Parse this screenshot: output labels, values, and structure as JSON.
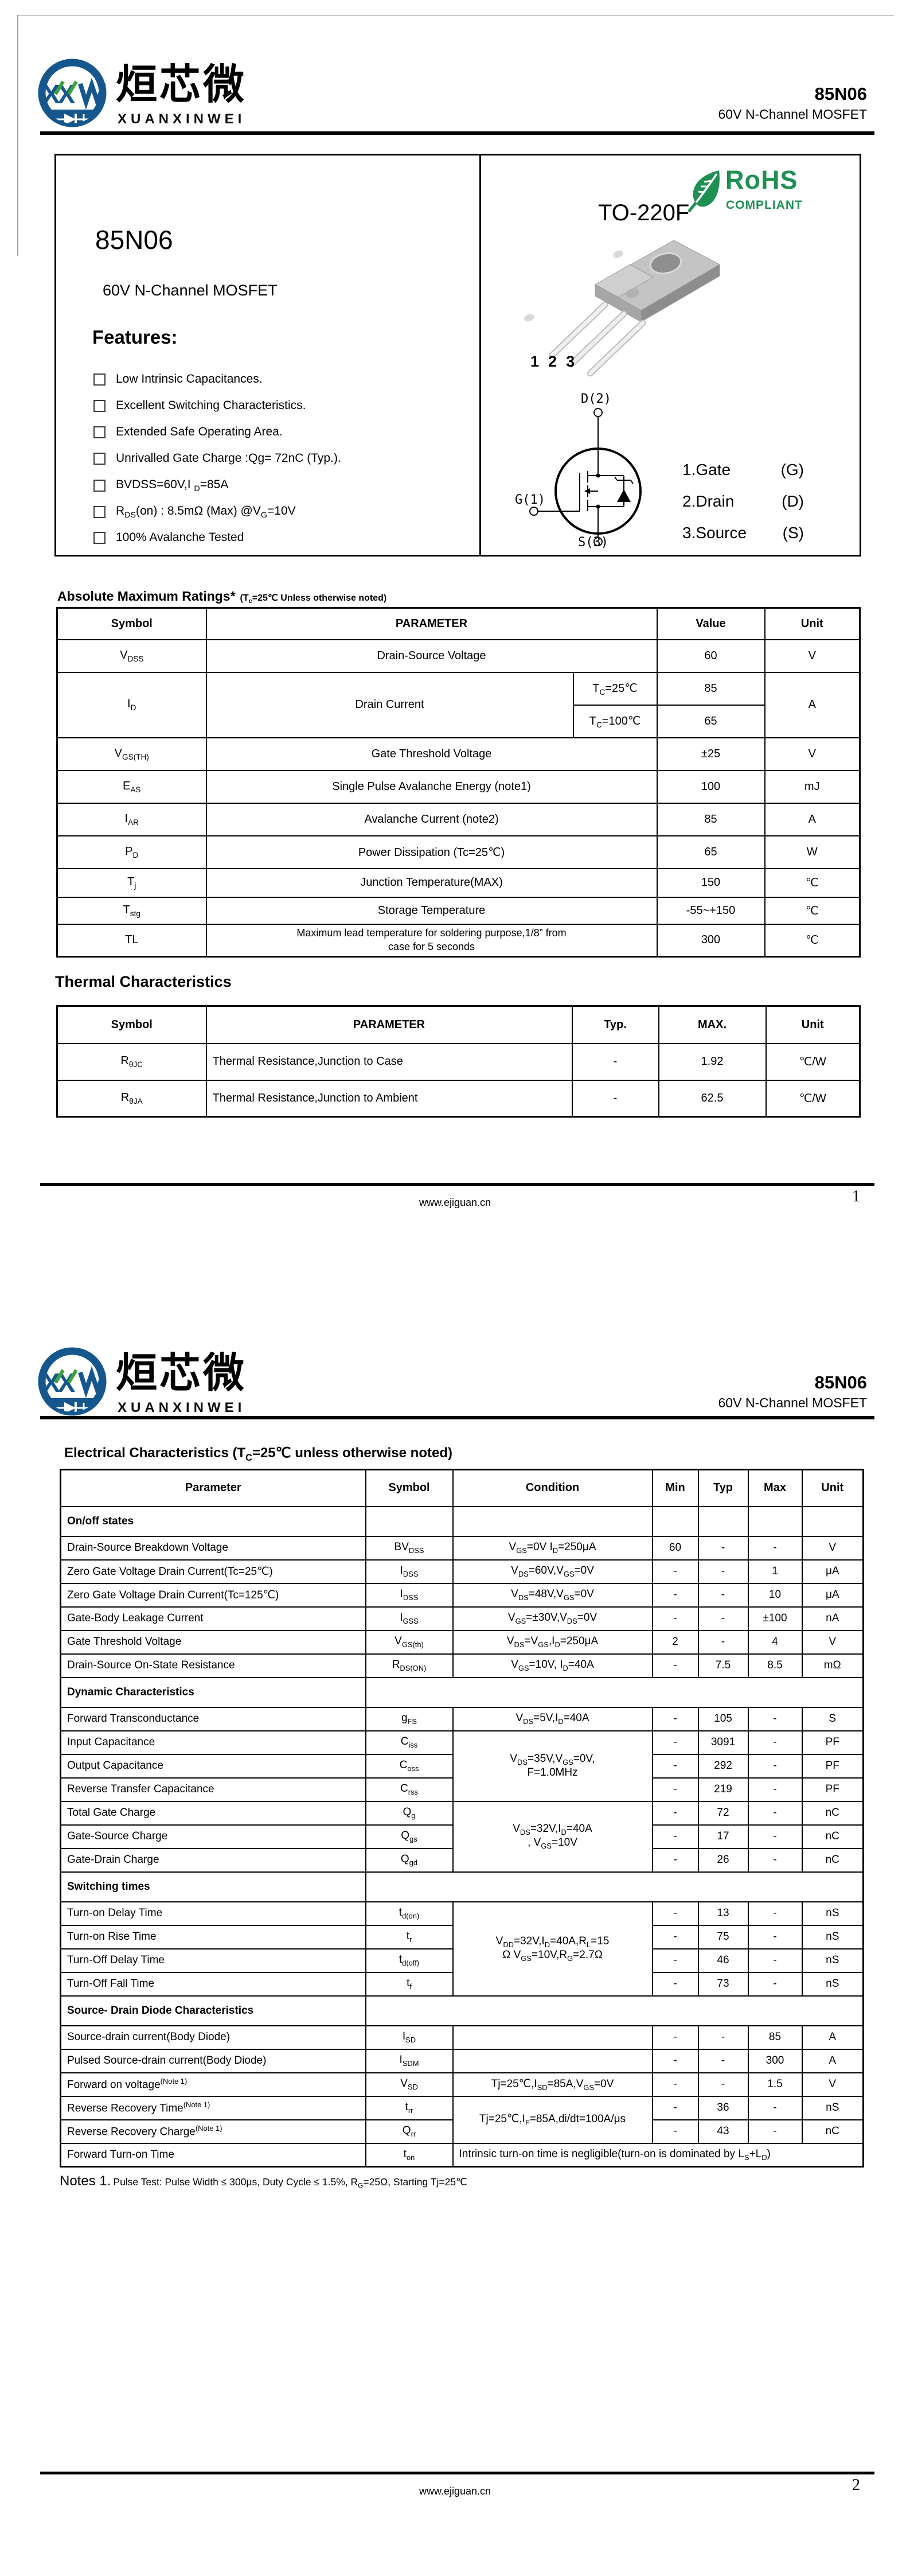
{
  "doc": {
    "part": "85N06",
    "subtitle": "60V N-Channel MOSFET"
  },
  "brand": {
    "cn": "烜芯微",
    "en": "XUANXINWEI"
  },
  "page1": {
    "product": {
      "title": "85N06",
      "subtitle": "60V N-Channel MOSFET",
      "features_title": "Features:",
      "features": [
        "Low Intrinsic Capacitances.",
        "Excellent Switching Characteristics.",
        "Extended Safe Operating Area.",
        "Unrivalled Gate Charge :Qg= 72nC (Typ.).",
        "BVDSS=60V,I _{D}=85A",
        "R_{DS}(on) : 8.5mΩ (Max) @V_{G}=10V",
        "100% Avalanche Tested"
      ]
    },
    "package": {
      "name": "TO-220F",
      "rohs": "RoHS",
      "rohs_sub": "COMPLIANT",
      "pins": [
        "1",
        "2",
        "3"
      ],
      "sym_top": "D(2)",
      "sym_left": "G(1)",
      "sym_bottom": "S(3)",
      "legend": [
        {
          "name": "1.Gate",
          "pin": "(G)"
        },
        {
          "name": "2.Drain",
          "pin": "(D)"
        },
        {
          "name": "3.Source",
          "pin": "(S)"
        }
      ]
    },
    "abs": {
      "title": "Absolute Maximum Ratings*",
      "note": "(T_{c}=25℃ Unless otherwise noted)",
      "headers": [
        "Symbol",
        "PARAMETER",
        "Value",
        "Unit"
      ],
      "r0": {
        "s": "V_{DSS}",
        "p": "Drain-Source Voltage",
        "v": "60",
        "u": "V"
      },
      "id": {
        "s": "I_{D}",
        "p": "Drain Current",
        "c1": "T_{C}=25℃",
        "v1": "85",
        "c2": "T_{C}=100℃",
        "v2": "65",
        "u": "A"
      },
      "rows": [
        {
          "s": "V_{GS(TH)}",
          "p": "Gate Threshold Voltage",
          "v": "±25",
          "u": "V"
        },
        {
          "s": "E_{AS}",
          "p": "Single Pulse Avalanche Energy (note1)",
          "v": "100",
          "u": "mJ"
        },
        {
          "s": "I_{AR}",
          "p": "Avalanche Current (note2)",
          "v": "85",
          "u": "A"
        },
        {
          "s": "P_{D}",
          "p": "Power Dissipation (Tc=25℃)",
          "v": "65",
          "u": "W"
        },
        {
          "s": "T_{j}",
          "p": "Junction Temperature(MAX)",
          "v": "150",
          "u": "℃"
        },
        {
          "s": "T_{stg}",
          "p": "Storage Temperature",
          "v": "-55~+150",
          "u": "℃"
        },
        {
          "s": "TL",
          "p": "Maximum lead temperature for soldering purpose,1/8” from\ncase for 5 seconds",
          "v": "300",
          "u": "℃"
        }
      ]
    },
    "thermal": {
      "title": "Thermal Characteristics",
      "headers": [
        "Symbol",
        "PARAMETER",
        "Typ.",
        "MAX.",
        "Unit"
      ],
      "rows": [
        {
          "s": "R_{θJC}",
          "p": "Thermal Resistance,Junction to Case",
          "t": "-",
          "m": "1.92",
          "u": "℃/W"
        },
        {
          "s": "R_{θJA}",
          "p": "Thermal Resistance,Junction to Ambient",
          "t": "-",
          "m": "62.5",
          "u": "℃/W"
        }
      ]
    },
    "footer": {
      "site": "www.ejiguan.cn",
      "page": "1"
    }
  },
  "page2": {
    "ec": {
      "title": "Electrical Characteristics (T_{C}=25℃ unless otherwise noted)",
      "headers": [
        "Parameter",
        "Symbol",
        "Condition",
        "Min",
        "Typ",
        "Max",
        "Unit"
      ],
      "sections": {
        "onoff": "On/off states",
        "dynamic": "Dynamic Characteristics",
        "switching": "Switching times",
        "diode": "Source- Drain Diode Characteristics"
      },
      "rows": [
        {
          "p": "Drain-Source Breakdown Voltage",
          "s": "BV_{DSS}",
          "c": "V_{GS}=0V I_{D}=250μA",
          "min": "60",
          "typ": "-",
          "max": "-",
          "u": "V"
        },
        {
          "p": "Zero Gate Voltage Drain Current(Tc=25℃)",
          "s": "I_{DSS}",
          "c": "V_{DS}=60V,V_{GS}=0V",
          "min": "-",
          "typ": "-",
          "max": "1",
          "u": "μA"
        },
        {
          "p": "Zero Gate Voltage Drain Current(Tc=125℃)",
          "s": "I_{DSS}",
          "c": "V_{DS}=48V,V_{GS}=0V",
          "min": "-",
          "typ": "-",
          "max": "10",
          "u": "μA"
        },
        {
          "p": "Gate-Body Leakage Current",
          "s": "I_{GSS}",
          "c": "V_{GS}=±30V,V_{DS}=0V",
          "min": "-",
          "typ": "-",
          "max": "±100",
          "u": "nA"
        },
        {
          "p": "Gate Threshold Voltage",
          "s": "V_{GS(th)}",
          "c": "V_{DS}=V_{GS},I_{D}=250μA",
          "min": "2",
          "typ": "-",
          "max": "4",
          "u": "V"
        },
        {
          "p": "Drain-Source On-State Resistance",
          "s": "R_{DS(ON)}",
          "c": "V_{GS}=10V, I_{D}=40A",
          "min": "-",
          "typ": "7.5",
          "max": "8.5",
          "u": "mΩ"
        },
        {
          "p": "Forward Transconductance",
          "s": "g_{FS}",
          "c": "V_{DS}=5V,I_{D}=40A",
          "min": "-",
          "typ": "105",
          "max": "-",
          "u": "S"
        },
        {
          "p": "Input Capacitance",
          "s": "C_{iss}",
          "c": "V_{DS}=35V,V_{GS}=0V,\nF=1.0MHz",
          "min": "-",
          "typ": "3091",
          "max": "-",
          "u": "PF"
        },
        {
          "p": "Output Capacitance",
          "s": "C_{oss}",
          "min": "-",
          "typ": "292",
          "max": "-",
          "u": "PF"
        },
        {
          "p": "Reverse Transfer Capacitance",
          "s": "C_{rss}",
          "min": "-",
          "typ": "219",
          "max": "-",
          "u": "PF"
        },
        {
          "p": "Total Gate Charge",
          "s": "Q_{g}",
          "c": "V_{DS}=32V,I_{D}=40A\n, V_{GS}=10V",
          "min": "-",
          "typ": "72",
          "max": "-",
          "u": "nC"
        },
        {
          "p": "Gate-Source Charge",
          "s": "Q_{gs}",
          "min": "-",
          "typ": "17",
          "max": "-",
          "u": "nC"
        },
        {
          "p": "Gate-Drain Charge",
          "s": "Q_{gd}",
          "min": "-",
          "typ": "26",
          "max": "-",
          "u": "nC"
        },
        {
          "p": "Turn-on Delay Time",
          "s": "t_{d(on)}",
          "c": "V_{DD}=32V,I_{D}=40A,R_{L}=15\nΩ V_{GS}=10V,R_{G}=2.7Ω",
          "min": "-",
          "typ": "13",
          "max": "-",
          "u": "nS"
        },
        {
          "p": "Turn-on Rise Time",
          "s": "t_{r}",
          "min": "-",
          "typ": "75",
          "max": "-",
          "u": "nS"
        },
        {
          "p": "Turn-Off Delay Time",
          "s": "t_{d(off)}",
          "min": "-",
          "typ": "46",
          "max": "-",
          "u": "nS"
        },
        {
          "p": "Turn-Off Fall Time",
          "s": "t_{f}",
          "min": "-",
          "typ": "73",
          "max": "-",
          "u": "nS"
        },
        {
          "p": "Source-drain current(Body Diode)",
          "s": "I_{SD}",
          "c": "",
          "min": "-",
          "typ": "-",
          "max": "85",
          "u": "A"
        },
        {
          "p": "Pulsed Source-drain current(Body Diode)",
          "s": "I_{SDM}",
          "c": "",
          "min": "-",
          "typ": "-",
          "max": "300",
          "u": "A"
        },
        {
          "p": "Forward on voltage^{(Note 1)}",
          "s": "V_{SD}",
          "c": "Tj=25℃,I_{SD}=85A,V_{GS}=0V",
          "min": "-",
          "typ": "-",
          "max": "1.5",
          "u": "V"
        },
        {
          "p": "Reverse Recovery Time^{(Note 1)}",
          "s": "t_{rr}",
          "c": "Tj=25℃,I_{F}=85A,di/dt=100A/μs",
          "min": "-",
          "typ": "36",
          "max": "-",
          "u": "nS"
        },
        {
          "p": "Reverse Recovery Charge^{(Note 1)}",
          "s": "Q_{rr}",
          "min": "-",
          "typ": "43",
          "max": "-",
          "u": "nC"
        },
        {
          "p": "Forward Turn-on Time",
          "s": "t_{on}",
          "c": "Intrinsic turn-on time is negligible(turn-on is dominated by L_{S}+L_{D})"
        }
      ]
    },
    "notes": {
      "label": "Notes 1.",
      "text": "Pulse Test: Pulse Width ≤ 300μs, Duty Cycle ≤ 1.5%, R_{G}=25Ω, Starting Tj=25℃"
    },
    "footer": {
      "site": "www.ejiguan.cn",
      "page": "2"
    }
  }
}
